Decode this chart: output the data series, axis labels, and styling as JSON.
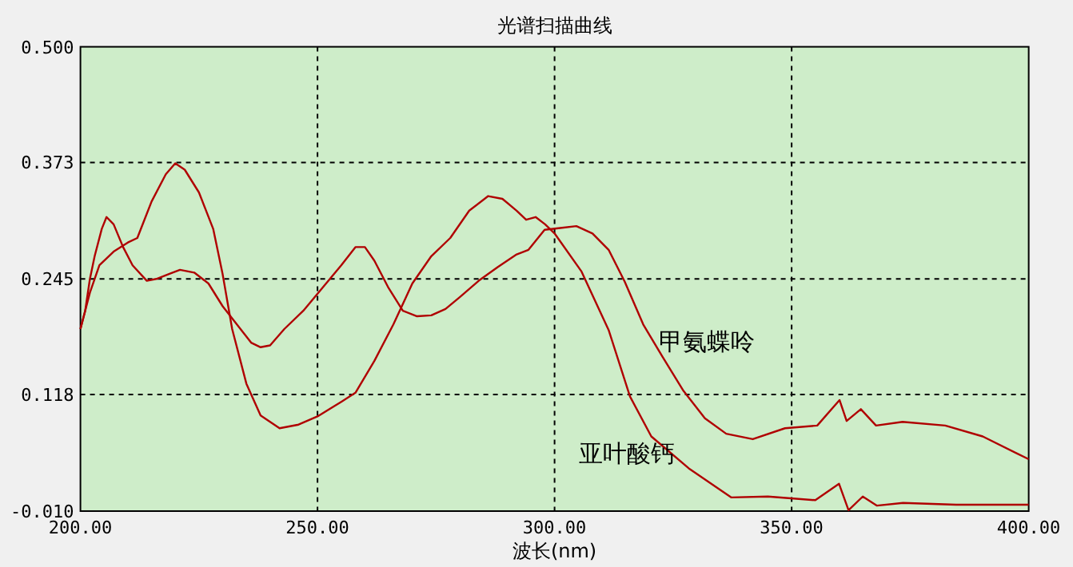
{
  "chart_data": {
    "type": "line",
    "title": "光谱扫描曲线",
    "xlabel": "波长(nm)",
    "xlim": [
      200,
      400
    ],
    "ylim": [
      -0.01,
      0.5
    ],
    "xticks": [
      {
        "value": 200,
        "label": "200.00"
      },
      {
        "value": 250,
        "label": "250.00"
      },
      {
        "value": 300,
        "label": "300.00"
      },
      {
        "value": 350,
        "label": "350.00"
      },
      {
        "value": 400,
        "label": "400.00"
      }
    ],
    "yticks": [
      {
        "value": -0.01,
        "label": "-0.010"
      },
      {
        "value": 0.118,
        "label": "0.118"
      },
      {
        "value": 0.245,
        "label": "0.245"
      },
      {
        "value": 0.373,
        "label": "0.373"
      },
      {
        "value": 0.5,
        "label": "0.500"
      }
    ],
    "grid": true,
    "line_style": "solid",
    "series": [
      {
        "name": "亚叶酸钙",
        "color": "#b00000",
        "x": [
          200,
          202,
          204,
          207,
          210,
          212,
          215,
          218,
          220,
          222,
          225,
          228,
          230,
          232,
          235,
          238,
          242,
          246,
          250,
          255,
          258,
          262,
          266,
          270,
          274,
          278,
          282,
          286,
          289,
          292,
          294,
          296,
          298,
          300,
          305.7,
          311.4,
          315.9,
          320.4,
          328.3,
          337.3,
          345,
          355,
          360,
          362,
          365,
          368,
          373.5,
          384.7,
          400
        ],
        "values": [
          0.19,
          0.23,
          0.26,
          0.275,
          0.285,
          0.29,
          0.33,
          0.36,
          0.372,
          0.365,
          0.34,
          0.3,
          0.25,
          0.19,
          0.13,
          0.095,
          0.081,
          0.085,
          0.094,
          0.11,
          0.12,
          0.155,
          0.195,
          0.24,
          0.27,
          0.29,
          0.32,
          0.336,
          0.333,
          0.32,
          0.31,
          0.313,
          0.305,
          0.295,
          0.253,
          0.189,
          0.116,
          0.072,
          0.037,
          0.005,
          0.006,
          0.002,
          0.02,
          -0.009,
          0.006,
          -0.004,
          -0.001,
          -0.003,
          -0.003
        ]
      },
      {
        "name": "甲氨蝶呤",
        "color": "#b00000",
        "x": [
          200,
          201,
          202,
          203,
          204.5,
          205.5,
          207,
          209,
          211,
          214,
          216,
          219,
          221,
          224,
          227,
          230,
          233,
          236,
          238,
          240,
          243,
          247,
          251,
          255,
          258,
          260,
          262,
          265,
          268,
          271,
          274,
          277,
          280,
          284,
          288,
          292,
          294.5,
          297.9,
          301.2,
          304.6,
          308,
          311.4,
          314.8,
          318.7,
          322.7,
          327.2,
          331.7,
          336.2,
          341.8,
          348.6,
          355.4,
          360.1,
          361.6,
          364.6,
          367.8,
          373.4,
          382.4,
          390.3,
          400
        ],
        "values": [
          0.19,
          0.21,
          0.245,
          0.27,
          0.3,
          0.313,
          0.305,
          0.28,
          0.26,
          0.243,
          0.245,
          0.251,
          0.255,
          0.252,
          0.24,
          0.215,
          0.195,
          0.175,
          0.17,
          0.172,
          0.19,
          0.21,
          0.235,
          0.26,
          0.28,
          0.28,
          0.265,
          0.235,
          0.21,
          0.204,
          0.205,
          0.212,
          0.225,
          0.243,
          0.258,
          0.272,
          0.277,
          0.299,
          0.301,
          0.303,
          0.295,
          0.277,
          0.242,
          0.195,
          0.16,
          0.122,
          0.092,
          0.075,
          0.069,
          0.081,
          0.084,
          0.112,
          0.089,
          0.102,
          0.084,
          0.088,
          0.084,
          0.072,
          0.047
        ]
      }
    ]
  }
}
